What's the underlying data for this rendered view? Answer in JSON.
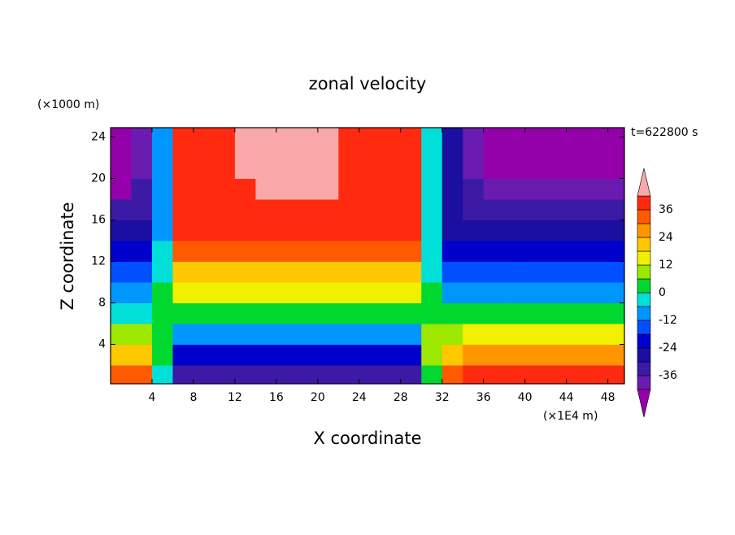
{
  "chart_data": {
    "type": "contour",
    "title": "zonal velocity",
    "x_label": "X coordinate",
    "y_label": "Z coordinate",
    "x_unit": "(×1E4 m)",
    "y_unit": "(×1000 m)",
    "annotation": "t=622800 s",
    "xlim": [
      0,
      49.6
    ],
    "ylim": [
      0.2,
      24.9
    ],
    "xticks": [
      4,
      8,
      12,
      16,
      20,
      24,
      28,
      32,
      36,
      40,
      44,
      48
    ],
    "yticks": [
      4,
      8,
      12,
      16,
      20,
      24
    ],
    "x": [
      1,
      3,
      5,
      7,
      9,
      11,
      13,
      15,
      17,
      19,
      21,
      23,
      25,
      27,
      29,
      31,
      33,
      35,
      37,
      39,
      41,
      43,
      45,
      47,
      49
    ],
    "y": [
      1,
      3,
      5,
      7,
      9,
      11,
      13,
      15,
      17,
      19,
      21,
      23,
      25
    ],
    "values": [
      [
        30,
        30,
        -3,
        -36,
        -36,
        -36,
        -36,
        -36,
        -36,
        -36,
        -36,
        -36,
        -36,
        -36,
        -36,
        0,
        30,
        36,
        36,
        36,
        36,
        36,
        36,
        36,
        36
      ],
      [
        18,
        18,
        0,
        -24,
        -24,
        -24,
        -24,
        -24,
        -24,
        -24,
        -24,
        -24,
        -24,
        -24,
        -24,
        10,
        20,
        24,
        24,
        24,
        24,
        24,
        24,
        24,
        24
      ],
      [
        6,
        6,
        3,
        -9,
        -9,
        -9,
        -9,
        -9,
        -9,
        -9,
        -9,
        -9,
        -9,
        -9,
        -9,
        6,
        9,
        12,
        12,
        12,
        12,
        12,
        12,
        12,
        12
      ],
      [
        -3,
        -3,
        3,
        3,
        3,
        3,
        3,
        3,
        3,
        3,
        3,
        3,
        3,
        3,
        3,
        3,
        0,
        3,
        3,
        3,
        3,
        3,
        3,
        3,
        3
      ],
      [
        -9,
        -9,
        0,
        12,
        12,
        12,
        12,
        12,
        12,
        12,
        12,
        12,
        12,
        12,
        12,
        0,
        -9,
        -9,
        -9,
        -9,
        -9,
        -9,
        -9,
        -9,
        -9
      ],
      [
        -18,
        -18,
        -3,
        21,
        21,
        21,
        21,
        21,
        21,
        21,
        21,
        21,
        21,
        21,
        21,
        -3,
        -18,
        -18,
        -18,
        -18,
        -18,
        -18,
        -18,
        -18,
        -18
      ],
      [
        -24,
        -24,
        -6,
        30,
        30,
        30,
        30,
        30,
        30,
        30,
        30,
        30,
        30,
        30,
        30,
        -6,
        -24,
        -24,
        -24,
        -24,
        -24,
        -24,
        -24,
        -24,
        -24
      ],
      [
        -30,
        -30,
        -9,
        36,
        36,
        36,
        36,
        36,
        36,
        36,
        36,
        36,
        36,
        36,
        36,
        -6,
        -27,
        -30,
        -30,
        -30,
        -30,
        -30,
        -30,
        -30,
        -30
      ],
      [
        -36,
        -33,
        -9,
        39,
        39,
        39,
        39,
        39,
        39,
        39,
        39,
        39,
        39,
        39,
        39,
        -6,
        -30,
        -36,
        -36,
        -36,
        -36,
        -36,
        -36,
        -36,
        -36
      ],
      [
        -44,
        -36,
        -9,
        39,
        39,
        39,
        39,
        45,
        45,
        45,
        45,
        39,
        39,
        39,
        39,
        -6,
        -30,
        -36,
        -40,
        -40,
        -40,
        -40,
        -40,
        -40,
        -40
      ],
      [
        -44,
        -38,
        -9,
        39,
        39,
        39,
        45,
        45,
        45,
        45,
        45,
        39,
        39,
        39,
        39,
        -6,
        -27,
        -40,
        -44,
        -44,
        -44,
        -44,
        -44,
        -44,
        -44
      ],
      [
        -44,
        -38,
        -9,
        39,
        39,
        39,
        45,
        45,
        45,
        45,
        45,
        39,
        39,
        39,
        39,
        -6,
        -27,
        -40,
        -44,
        -44,
        -44,
        -44,
        -44,
        -44,
        -44
      ],
      [
        -44,
        -38,
        -9,
        39,
        39,
        39,
        45,
        45,
        45,
        45,
        45,
        39,
        39,
        39,
        39,
        -6,
        -27,
        -40,
        -44,
        -44,
        -44,
        -44,
        -44,
        -44,
        -44
      ]
    ],
    "levels": [
      -42,
      -36,
      -30,
      -24,
      -18,
      -12,
      -6,
      0,
      6,
      12,
      18,
      24,
      30,
      36,
      42
    ],
    "colors": [
      "#9400aa",
      "#6a1cb0",
      "#3c1aa6",
      "#1a0fa0",
      "#0000cd",
      "#0050ff",
      "#0096ff",
      "#00e0d8",
      "#00d830",
      "#9ce800",
      "#f0f000",
      "#ffc800",
      "#ff9600",
      "#ff5a00",
      "#ff2a10",
      "#f8a8a8"
    ],
    "colorbar_ticks": [
      36,
      24,
      12,
      0,
      -12,
      -24,
      -36
    ]
  }
}
